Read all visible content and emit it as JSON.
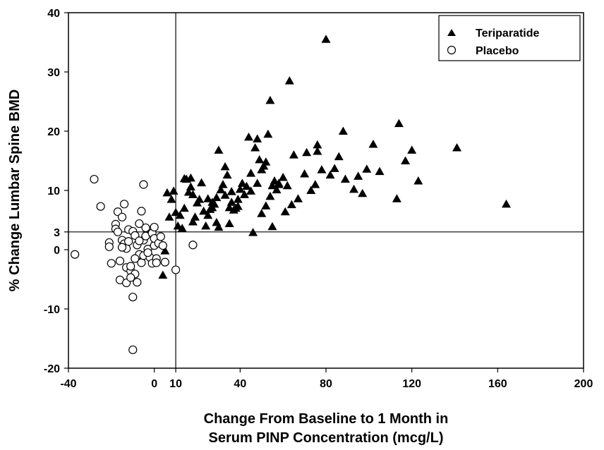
{
  "chart_data": {
    "type": "scatter",
    "xlabel": [
      "Change From Baseline to 1 Month in",
      "Serum PINP Concentration (mcg/L)"
    ],
    "ylabel": "% Change Lumbar Spine BMD",
    "xlim": [
      -40,
      200
    ],
    "ylim": [
      -20,
      40
    ],
    "x_ticks": [
      -40,
      0,
      10,
      40,
      80,
      120,
      160,
      200
    ],
    "y_ticks": [
      -20,
      -10,
      0,
      3,
      10,
      20,
      30,
      40
    ],
    "reference_lines": {
      "x": 10,
      "y": 3
    },
    "legend": {
      "position": "top-right"
    },
    "series": [
      {
        "name": "Teriparatide",
        "marker": "filled-triangle",
        "color": "#000000",
        "points": [
          [
            80,
            35.5
          ],
          [
            63,
            28.5
          ],
          [
            54,
            25.2
          ],
          [
            88,
            20.0
          ],
          [
            114,
            21.3
          ],
          [
            141,
            17.2
          ],
          [
            120,
            16.8
          ],
          [
            117,
            15.0
          ],
          [
            102,
            17.8
          ],
          [
            105,
            13.2
          ],
          [
            99,
            13.6
          ],
          [
            95,
            12.4
          ],
          [
            97,
            9.5
          ],
          [
            93,
            10.2
          ],
          [
            89,
            11.9
          ],
          [
            86,
            15.7
          ],
          [
            84,
            13.7
          ],
          [
            82,
            12.6
          ],
          [
            78,
            13.5
          ],
          [
            76,
            17.7
          ],
          [
            76,
            16.6
          ],
          [
            75,
            11.0
          ],
          [
            73,
            10.0
          ],
          [
            71,
            16.4
          ],
          [
            70,
            12.8
          ],
          [
            67,
            8.6
          ],
          [
            65,
            16.0
          ],
          [
            64,
            7.6
          ],
          [
            62,
            10.8
          ],
          [
            60,
            12.2
          ],
          [
            58,
            11.2
          ],
          [
            57,
            10.1
          ],
          [
            56,
            11.6
          ],
          [
            55,
            10.8
          ],
          [
            54,
            9.0
          ],
          [
            53,
            19.5
          ],
          [
            52,
            14.8
          ],
          [
            51,
            14.1
          ],
          [
            50,
            13.5
          ],
          [
            49,
            15.2
          ],
          [
            48,
            18.7
          ],
          [
            47,
            17.2
          ],
          [
            45,
            12.9
          ],
          [
            44,
            19.0
          ],
          [
            43,
            10.7
          ],
          [
            42,
            9.3
          ],
          [
            41,
            11.2
          ],
          [
            40,
            10.2
          ],
          [
            39,
            8.5
          ],
          [
            38,
            7.0
          ],
          [
            37,
            6.7
          ],
          [
            36,
            9.8
          ],
          [
            35,
            7.1
          ],
          [
            34,
            12.6
          ],
          [
            33,
            14.0
          ],
          [
            32,
            11.0
          ],
          [
            31,
            10.1
          ],
          [
            30,
            16.8
          ],
          [
            29,
            8.8
          ],
          [
            28,
            7.7
          ],
          [
            27,
            8.0
          ],
          [
            26,
            6.8
          ],
          [
            25,
            5.8
          ],
          [
            24,
            4.0
          ],
          [
            23,
            6.5
          ],
          [
            22,
            11.3
          ],
          [
            21,
            8.5
          ],
          [
            20,
            7.9
          ],
          [
            19,
            5.5
          ],
          [
            18,
            4.7
          ],
          [
            17,
            10.6
          ],
          [
            16,
            9.7
          ],
          [
            15,
            11.9
          ],
          [
            14,
            7.0
          ],
          [
            13,
            3.6
          ],
          [
            12,
            5.8
          ],
          [
            11,
            4.0
          ],
          [
            10,
            6.3
          ],
          [
            9,
            9.9
          ],
          [
            8,
            8.5
          ],
          [
            7,
            5.5
          ],
          [
            6,
            9.6
          ],
          [
            5,
            -0.2
          ],
          [
            4,
            -4.3
          ],
          [
            14,
            12.0
          ],
          [
            17,
            12.1
          ],
          [
            18,
            9.3
          ],
          [
            25,
            8.6
          ],
          [
            27,
            7.1
          ],
          [
            29,
            4.6
          ],
          [
            30,
            3.8
          ],
          [
            33,
            9.2
          ],
          [
            36,
            8.0
          ],
          [
            39,
            7.3
          ],
          [
            46,
            2.9
          ],
          [
            50,
            6.1
          ],
          [
            55,
            3.9
          ],
          [
            123,
            11.6
          ],
          [
            113,
            8.6
          ],
          [
            164,
            7.7
          ],
          [
            35,
            4.4
          ],
          [
            45,
            9.9
          ],
          [
            52,
            7.4
          ],
          [
            58,
            11.0
          ],
          [
            61,
            6.4
          ],
          [
            48,
            11.2
          ]
        ]
      },
      {
        "name": "Placebo",
        "marker": "open-circle",
        "color": "#000000",
        "points": [
          [
            -37,
            -0.8
          ],
          [
            -28,
            11.9
          ],
          [
            -25,
            7.3
          ],
          [
            -21,
            1.2
          ],
          [
            -21,
            0.5
          ],
          [
            -20,
            -2.3
          ],
          [
            -18,
            4.3
          ],
          [
            -18,
            3.5
          ],
          [
            -17,
            6.4
          ],
          [
            -17,
            3.0
          ],
          [
            -16,
            -1.9
          ],
          [
            -16,
            -5.1
          ],
          [
            -15,
            5.5
          ],
          [
            -15,
            1.6
          ],
          [
            -14,
            7.7
          ],
          [
            -14,
            1.0
          ],
          [
            -13,
            -3.0
          ],
          [
            -13,
            0.2
          ],
          [
            -13,
            -5.6
          ],
          [
            -12,
            1.4
          ],
          [
            -12,
            3.4
          ],
          [
            -11,
            -3.6
          ],
          [
            -11,
            -2.8
          ],
          [
            -10,
            -8.0
          ],
          [
            -10,
            -16.9
          ],
          [
            -10,
            3.1
          ],
          [
            -9,
            2.4
          ],
          [
            -9,
            -4.1
          ],
          [
            -8,
            -5.5
          ],
          [
            -8,
            0.8
          ],
          [
            -7,
            -0.8
          ],
          [
            -7,
            4.4
          ],
          [
            -6,
            6.5
          ],
          [
            -6,
            -2.2
          ],
          [
            -5,
            1.6
          ],
          [
            -5,
            -1.0
          ],
          [
            -5,
            11.0
          ],
          [
            -4,
            3.7
          ],
          [
            -4,
            2.3
          ],
          [
            -3,
            0.1
          ],
          [
            -2,
            -1.3
          ],
          [
            -1,
            2.8
          ],
          [
            -1,
            -2.3
          ],
          [
            0,
            3.8
          ],
          [
            0,
            0.7
          ],
          [
            0,
            1.9
          ],
          [
            1,
            -1.5
          ],
          [
            1,
            -2.2
          ],
          [
            2,
            1.1
          ],
          [
            3,
            2.2
          ],
          [
            4,
            0.7
          ],
          [
            5,
            -2.1
          ],
          [
            10,
            -3.4
          ],
          [
            18,
            0.8
          ],
          [
            -11,
            -4.7
          ],
          [
            -9,
            -1.5
          ],
          [
            -3,
            -0.5
          ],
          [
            -15,
            0.4
          ],
          [
            -7,
            1.5
          ]
        ]
      }
    ]
  }
}
